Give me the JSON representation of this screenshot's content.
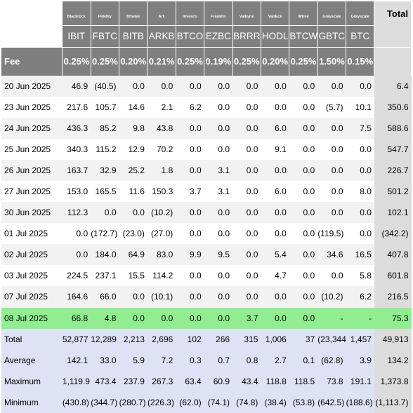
{
  "header": {
    "providers": [
      "Blackrock",
      "Fidelity",
      "Bitwise",
      "Ark",
      "Invesco",
      "Franklin",
      "Valkyrie",
      "VanEck",
      "Wtree",
      "Grayscale",
      "Grayscale"
    ],
    "tickers": [
      "IBIT",
      "FBTC",
      "BITB",
      "ARKB",
      "BTCO",
      "EZBC",
      "BRRR",
      "HODL",
      "BTCW",
      "GBTC",
      "BTC"
    ],
    "total_label": "Total",
    "fee_label": "Fee",
    "fees": [
      "0.25%",
      "0.25%",
      "0.20%",
      "0.21%",
      "0.25%",
      "0.19%",
      "0.25%",
      "0.20%",
      "0.25%",
      "1.50%",
      "0.15%"
    ]
  },
  "rows": [
    {
      "date": "20 Jun 2025",
      "values": [
        "46.9",
        "(40.5)",
        "0.0",
        "0.0",
        "0.0",
        "0.0",
        "0.0",
        "0.0",
        "0.0",
        "0.0",
        "0.0"
      ],
      "total": "6.4"
    },
    {
      "date": "23 Jun 2025",
      "values": [
        "217.6",
        "105.7",
        "14.6",
        "2.1",
        "6.2",
        "0.0",
        "0.0",
        "0.0",
        "0.0",
        "(5.7)",
        "10.1"
      ],
      "total": "350.6"
    },
    {
      "date": "24 Jun 2025",
      "values": [
        "436.3",
        "85.2",
        "9.8",
        "43.8",
        "0.0",
        "0.0",
        "0.0",
        "6.0",
        "0.0",
        "0.0",
        "7.5"
      ],
      "total": "588.6"
    },
    {
      "date": "25 Jun 2025",
      "values": [
        "340.3",
        "115.2",
        "12.9",
        "70.2",
        "0.0",
        "0.0",
        "0.0",
        "9.1",
        "0.0",
        "0.0",
        "0.0"
      ],
      "total": "547.7"
    },
    {
      "date": "26 Jun 2025",
      "values": [
        "163.7",
        "32.9",
        "25.2",
        "1.8",
        "0.0",
        "3.1",
        "0.0",
        "0.0",
        "0.0",
        "0.0",
        "0.0"
      ],
      "total": "226.7"
    },
    {
      "date": "27 Jun 2025",
      "values": [
        "153.0",
        "165.5",
        "11.6",
        "150.3",
        "3.7",
        "3.1",
        "0.0",
        "6.0",
        "0.0",
        "0.0",
        "8.0"
      ],
      "total": "501.2"
    },
    {
      "date": "30 Jun 2025",
      "values": [
        "112.3",
        "0.0",
        "0.0",
        "(10.2)",
        "0.0",
        "0.0",
        "0.0",
        "0.0",
        "0.0",
        "0.0",
        "0.0"
      ],
      "total": "102.1"
    },
    {
      "date": "01 Jul 2025",
      "values": [
        "0.0",
        "(172.7)",
        "(23.0)",
        "(27.0)",
        "0.0",
        "0.0",
        "0.0",
        "0.0",
        "0.0",
        "(119.5)",
        "0.0"
      ],
      "total": "(342.2)"
    },
    {
      "date": "02 Jul 2025",
      "values": [
        "0.0",
        "184.0",
        "64.9",
        "83.0",
        "9.9",
        "9.5",
        "0.0",
        "5.4",
        "0.0",
        "34.6",
        "16.5"
      ],
      "total": "407.8"
    },
    {
      "date": "03 Jul 2025",
      "values": [
        "224.5",
        "237.1",
        "15.5",
        "114.2",
        "0.0",
        "0.0",
        "0.0",
        "4.7",
        "0.0",
        "0.0",
        "5.8"
      ],
      "total": "601.8"
    },
    {
      "date": "07 Jul 2025",
      "values": [
        "164.6",
        "66.0",
        "0.0",
        "(10.1)",
        "0.0",
        "0.0",
        "0.0",
        "0.0",
        "0.0",
        "(10.2)",
        "6.2"
      ],
      "total": "216.5"
    },
    {
      "date": "08 Jul 2025",
      "values": [
        "66.8",
        "4.8",
        "0.0",
        "0.0",
        "0.0",
        "0.0",
        "3.7",
        "0.0",
        "0.0",
        "-",
        "-"
      ],
      "total": "75.3",
      "highlight": true
    }
  ],
  "summary": [
    {
      "label": "Total",
      "values": [
        "52,877",
        "12,289",
        "2,213",
        "2,696",
        "102",
        "266",
        "315",
        "1,006",
        "37",
        "(23,344)",
        "1,457"
      ],
      "total": "49,913"
    },
    {
      "label": "Average",
      "values": [
        "142.1",
        "33.0",
        "5.9",
        "7.2",
        "0.3",
        "0.7",
        "0.8",
        "2.7",
        "0.1",
        "(62.8)",
        "3.9"
      ],
      "total": "134.2"
    },
    {
      "label": "Maximum",
      "values": [
        "1,119.9",
        "473.4",
        "237.9",
        "267.3",
        "63.4",
        "60.9",
        "43.4",
        "118.8",
        "118.5",
        "73.8",
        "191.1"
      ],
      "total": "1,373.8"
    },
    {
      "label": "Minimum",
      "values": [
        "(430.8)",
        "(344.7)",
        "(280.7)",
        "(226.3)",
        "(62.0)",
        "(74.1)",
        "(74.8)",
        "(38.4)",
        "(53.8)",
        "(642.5)",
        "(188.6)"
      ],
      "total": "(1,113.7)",
      "all_negative": true
    }
  ],
  "colors": {
    "header_bg": "#7f7f7f",
    "total_col_bg": "#dcdcdc",
    "row_alt_bg": "#f2f2f2",
    "summary_bg": "#dde3f4",
    "highlight_bg": "#90ee90",
    "negative_text": "#e00000"
  }
}
